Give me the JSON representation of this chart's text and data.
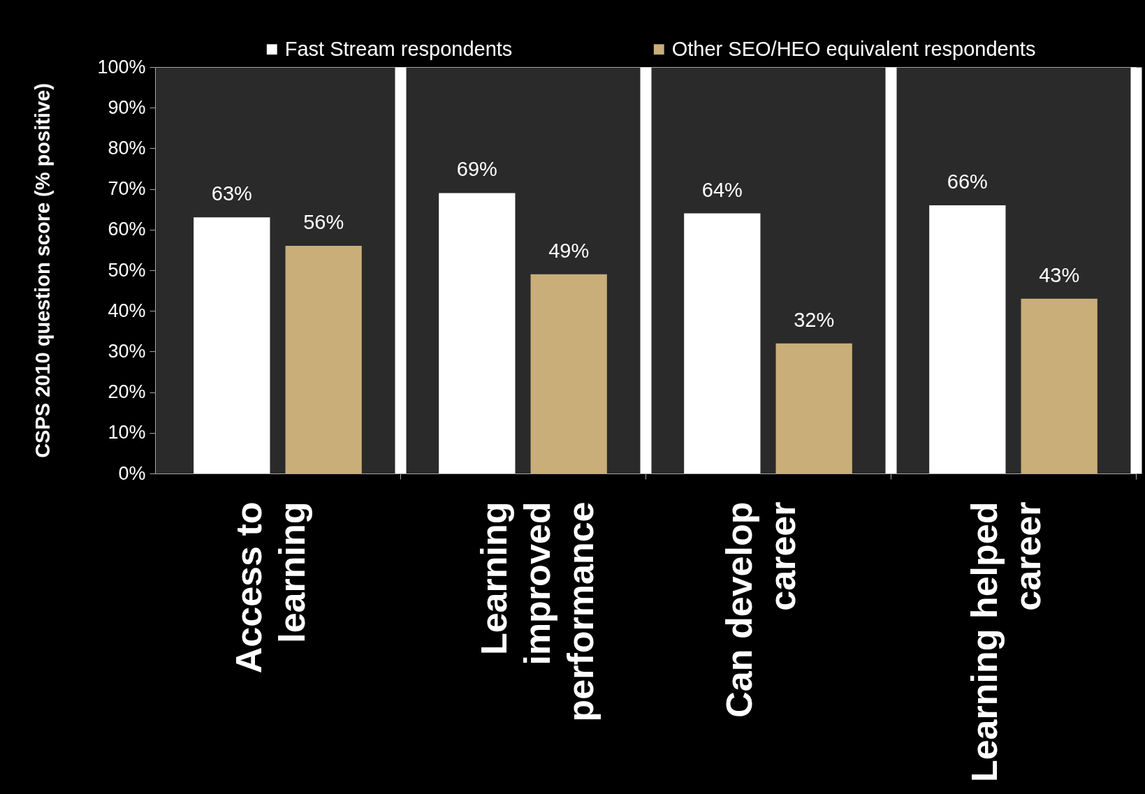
{
  "chart_data": {
    "type": "bar",
    "ylabel": "CSPS 2010 question score (% positive)",
    "categories": [
      "Access to learning",
      "Learning improved performance",
      "Can develop career",
      "Learning helped career"
    ],
    "series": [
      {
        "name": "Fast Stream respondents",
        "color": "#ffffff",
        "values": [
          63,
          69,
          64,
          66
        ],
        "value_labels": [
          "63%",
          "69%",
          "64%",
          "66%"
        ]
      },
      {
        "name": "Other SEO/HEO equivalent respondents",
        "color": "#c9ae79",
        "values": [
          56,
          49,
          32,
          43
        ],
        "value_labels": [
          "56%",
          "49%",
          "32%",
          "43%"
        ]
      }
    ],
    "ylim": [
      0,
      100
    ],
    "yticks": [
      {
        "value": 0,
        "label": "0%"
      },
      {
        "value": 10,
        "label": "10%"
      },
      {
        "value": 20,
        "label": "20%"
      },
      {
        "value": 30,
        "label": "30%"
      },
      {
        "value": 40,
        "label": "40%"
      },
      {
        "value": 50,
        "label": "50%"
      },
      {
        "value": 60,
        "label": "60%"
      },
      {
        "value": 70,
        "label": "70%"
      },
      {
        "value": 80,
        "label": "80%"
      },
      {
        "value": 90,
        "label": "90%"
      },
      {
        "value": 100,
        "label": "100%"
      }
    ],
    "grid": "x",
    "legend": "top"
  }
}
